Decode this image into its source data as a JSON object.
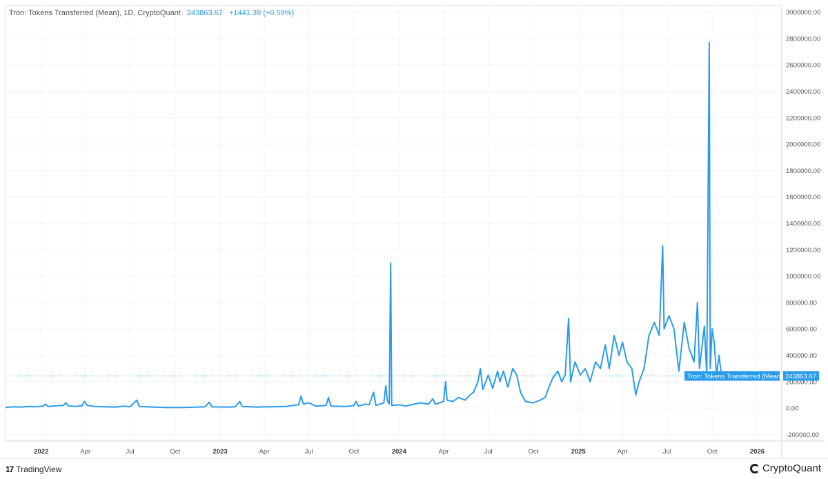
{
  "legend": {
    "title": "Tron: Tokens Transferred (Mean), 1D, CryptoQuant",
    "value": "243863.67",
    "change": "+1441.39 (+0.59%)"
  },
  "footer": {
    "left_logo": "17",
    "left_text": "TradingView",
    "right_text": "CryptoQuant"
  },
  "colors": {
    "series": "#2a9bea",
    "grid": "#f0f3fa",
    "axis_text": "#555555"
  },
  "chart_data": {
    "type": "line",
    "series": [
      {
        "name": "Tron: Tokens Transferred (Mean)",
        "points": [
          [
            "2021-10-20",
            5000
          ],
          [
            "2021-11-05",
            10000
          ],
          [
            "2021-11-20",
            8000
          ],
          [
            "2021-12-05",
            12000
          ],
          [
            "2021-12-20",
            10000
          ],
          [
            "2022-01-05",
            15000
          ],
          [
            "2022-01-10",
            30000
          ],
          [
            "2022-01-15",
            12000
          ],
          [
            "2022-02-01",
            18000
          ],
          [
            "2022-02-15",
            20000
          ],
          [
            "2022-02-20",
            40000
          ],
          [
            "2022-02-25",
            18000
          ],
          [
            "2022-03-10",
            12000
          ],
          [
            "2022-03-25",
            18000
          ],
          [
            "2022-03-30",
            50000
          ],
          [
            "2022-04-05",
            20000
          ],
          [
            "2022-04-20",
            12000
          ],
          [
            "2022-05-10",
            10000
          ],
          [
            "2022-06-01",
            8000
          ],
          [
            "2022-06-20",
            15000
          ],
          [
            "2022-07-01",
            10000
          ],
          [
            "2022-07-15",
            60000
          ],
          [
            "2022-07-20",
            12000
          ],
          [
            "2022-08-15",
            8000
          ],
          [
            "2022-09-15",
            5000
          ],
          [
            "2022-10-15",
            5000
          ],
          [
            "2022-11-15",
            8000
          ],
          [
            "2022-12-01",
            10000
          ],
          [
            "2022-12-10",
            45000
          ],
          [
            "2022-12-15",
            10000
          ],
          [
            "2023-01-15",
            8000
          ],
          [
            "2023-02-01",
            10000
          ],
          [
            "2023-02-10",
            50000
          ],
          [
            "2023-02-15",
            12000
          ],
          [
            "2023-03-15",
            8000
          ],
          [
            "2023-04-15",
            10000
          ],
          [
            "2023-05-15",
            12000
          ],
          [
            "2023-06-10",
            25000
          ],
          [
            "2023-06-15",
            90000
          ],
          [
            "2023-06-20",
            30000
          ],
          [
            "2023-07-01",
            40000
          ],
          [
            "2023-07-15",
            15000
          ],
          [
            "2023-08-05",
            20000
          ],
          [
            "2023-08-10",
            80000
          ],
          [
            "2023-08-15",
            15000
          ],
          [
            "2023-09-15",
            12000
          ],
          [
            "2023-10-01",
            20000
          ],
          [
            "2023-10-05",
            50000
          ],
          [
            "2023-10-10",
            15000
          ],
          [
            "2023-10-25",
            30000
          ],
          [
            "2023-11-01",
            25000
          ],
          [
            "2023-11-10",
            120000
          ],
          [
            "2023-11-15",
            20000
          ],
          [
            "2023-12-01",
            40000
          ],
          [
            "2023-12-05",
            170000
          ],
          [
            "2023-12-08",
            60000
          ],
          [
            "2023-12-12",
            30000
          ],
          [
            "2023-12-15",
            1100000
          ],
          [
            "2023-12-17",
            20000
          ],
          [
            "2024-01-01",
            25000
          ],
          [
            "2024-01-15",
            15000
          ],
          [
            "2024-02-01",
            30000
          ],
          [
            "2024-02-15",
            40000
          ],
          [
            "2024-03-01",
            30000
          ],
          [
            "2024-03-10",
            70000
          ],
          [
            "2024-03-15",
            30000
          ],
          [
            "2024-04-01",
            50000
          ],
          [
            "2024-04-05",
            200000
          ],
          [
            "2024-04-08",
            60000
          ],
          [
            "2024-04-20",
            50000
          ],
          [
            "2024-05-01",
            80000
          ],
          [
            "2024-05-15",
            60000
          ],
          [
            "2024-05-25",
            100000
          ],
          [
            "2024-06-01",
            120000
          ],
          [
            "2024-06-10",
            200000
          ],
          [
            "2024-06-15",
            300000
          ],
          [
            "2024-06-20",
            140000
          ],
          [
            "2024-07-01",
            250000
          ],
          [
            "2024-07-10",
            150000
          ],
          [
            "2024-07-20",
            280000
          ],
          [
            "2024-07-25",
            200000
          ],
          [
            "2024-08-01",
            280000
          ],
          [
            "2024-08-10",
            160000
          ],
          [
            "2024-08-20",
            300000
          ],
          [
            "2024-08-28",
            250000
          ],
          [
            "2024-09-05",
            120000
          ],
          [
            "2024-09-15",
            50000
          ],
          [
            "2024-10-01",
            40000
          ],
          [
            "2024-10-15",
            60000
          ],
          [
            "2024-10-25",
            80000
          ],
          [
            "2024-11-01",
            150000
          ],
          [
            "2024-11-10",
            230000
          ],
          [
            "2024-11-20",
            280000
          ],
          [
            "2024-11-28",
            200000
          ],
          [
            "2024-12-05",
            250000
          ],
          [
            "2024-12-12",
            680000
          ],
          [
            "2024-12-16",
            200000
          ],
          [
            "2024-12-25",
            350000
          ],
          [
            "2025-01-05",
            250000
          ],
          [
            "2025-01-15",
            300000
          ],
          [
            "2025-01-25",
            200000
          ],
          [
            "2025-02-05",
            350000
          ],
          [
            "2025-02-15",
            300000
          ],
          [
            "2025-02-25",
            480000
          ],
          [
            "2025-03-05",
            300000
          ],
          [
            "2025-03-15",
            550000
          ],
          [
            "2025-03-25",
            400000
          ],
          [
            "2025-04-01",
            500000
          ],
          [
            "2025-04-10",
            350000
          ],
          [
            "2025-04-20",
            300000
          ],
          [
            "2025-04-28",
            100000
          ],
          [
            "2025-05-05",
            200000
          ],
          [
            "2025-05-15",
            300000
          ],
          [
            "2025-05-25",
            550000
          ],
          [
            "2025-06-05",
            650000
          ],
          [
            "2025-06-15",
            550000
          ],
          [
            "2025-06-22",
            1230000
          ],
          [
            "2025-06-25",
            600000
          ],
          [
            "2025-07-05",
            700000
          ],
          [
            "2025-07-15",
            600000
          ],
          [
            "2025-07-25",
            280000
          ],
          [
            "2025-08-05",
            650000
          ],
          [
            "2025-08-15",
            450000
          ],
          [
            "2025-08-25",
            350000
          ],
          [
            "2025-09-01",
            800000
          ],
          [
            "2025-09-05",
            300000
          ],
          [
            "2025-09-15",
            620000
          ],
          [
            "2025-09-20",
            250000
          ],
          [
            "2025-09-25",
            2770000
          ],
          [
            "2025-09-27",
            300000
          ],
          [
            "2025-10-01",
            600000
          ],
          [
            "2025-10-05",
            500000
          ],
          [
            "2025-10-10",
            250000
          ],
          [
            "2025-10-15",
            400000
          ],
          [
            "2025-10-20",
            243864
          ]
        ]
      }
    ],
    "x_ticks": [
      {
        "date": "2022-01-01",
        "label": "2022",
        "bold": true
      },
      {
        "date": "2022-04-01",
        "label": "Apr"
      },
      {
        "date": "2022-07-01",
        "label": "Jul"
      },
      {
        "date": "2022-10-01",
        "label": "Oct"
      },
      {
        "date": "2023-01-01",
        "label": "2023",
        "bold": true
      },
      {
        "date": "2023-04-01",
        "label": "Apr"
      },
      {
        "date": "2023-07-01",
        "label": "Jul"
      },
      {
        "date": "2023-10-01",
        "label": "Oct"
      },
      {
        "date": "2024-01-01",
        "label": "2024",
        "bold": true
      },
      {
        "date": "2024-04-01",
        "label": "Apr"
      },
      {
        "date": "2024-07-01",
        "label": "Jul"
      },
      {
        "date": "2024-10-01",
        "label": "Oct"
      },
      {
        "date": "2025-01-01",
        "label": "2025",
        "bold": true
      },
      {
        "date": "2025-04-01",
        "label": "Apr"
      },
      {
        "date": "2025-07-01",
        "label": "Jul"
      },
      {
        "date": "2025-10-01",
        "label": "Oct"
      },
      {
        "date": "2026-01-01",
        "label": "2026",
        "bold": true
      }
    ],
    "y_ticks": [
      {
        "value": 3000000,
        "label": "3000000.00"
      },
      {
        "value": 2800000,
        "label": "2800000.00"
      },
      {
        "value": 2600000,
        "label": "2600000.00"
      },
      {
        "value": 2400000,
        "label": "2400000.00"
      },
      {
        "value": 2200000,
        "label": "2200000.00"
      },
      {
        "value": 2000000,
        "label": "2000000.00"
      },
      {
        "value": 1800000,
        "label": "1800000.00"
      },
      {
        "value": 1600000,
        "label": "1600000.00"
      },
      {
        "value": 1400000,
        "label": "1400000.00"
      },
      {
        "value": 1200000,
        "label": "1200000.00"
      },
      {
        "value": 1000000,
        "label": "1000000.00"
      },
      {
        "value": 800000,
        "label": "800000.00"
      },
      {
        "value": 600000,
        "label": "600000.00"
      },
      {
        "value": 400000,
        "label": "400000.00"
      },
      {
        "value": 200000,
        "label": "200000.00"
      },
      {
        "value": 0,
        "label": "0.00"
      },
      {
        "value": -200000,
        "label": "-200000.00"
      }
    ],
    "xlim": [
      "2021-10-20",
      "2026-02-20"
    ],
    "ylim": [
      -250000,
      3050000
    ],
    "last_value": 243863.67,
    "last_value_label": "243863.67",
    "last_value_series_label": "Tron: Tokens Transferred (Mean)",
    "grid": true,
    "legend_position": "top-left"
  }
}
